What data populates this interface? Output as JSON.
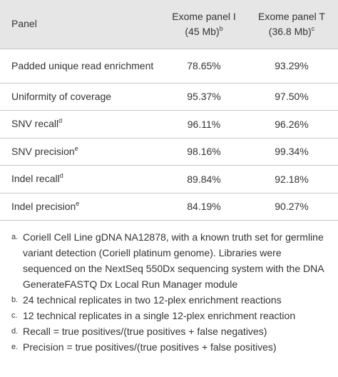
{
  "table": {
    "header": {
      "panel": "Panel",
      "columns": [
        {
          "title": "Exome panel I",
          "size": "(45 Mb)",
          "note": "b"
        },
        {
          "title": "Exome panel T",
          "size": "(36.8 Mb)",
          "note": "c"
        }
      ]
    },
    "rows": [
      {
        "label": "Padded unique read enrichment",
        "values": [
          "78.65%",
          "93.29%"
        ]
      },
      {
        "label": "Uniformity of coverage",
        "values": [
          "95.37%",
          "97.50%"
        ]
      },
      {
        "label": "SNV recall",
        "note": "d",
        "values": [
          "96.11%",
          "96.26%"
        ]
      },
      {
        "label": "SNV precision",
        "note": "e",
        "values": [
          "98.16%",
          "99.34%"
        ]
      },
      {
        "label": "Indel recall",
        "note": "d",
        "values": [
          "89.84%",
          "92.18%"
        ]
      },
      {
        "label": "Indel precision",
        "note": "e",
        "values": [
          "84.19%",
          "90.27%"
        ]
      }
    ]
  },
  "footnotes": [
    {
      "marker": "a.",
      "text": "Coriell Cell Line gDNA NA12878, with a known truth set for germline variant detection (Coriell platinum genome). Libraries were sequenced on the NextSeq 550Dx sequencing system with the DNA GenerateFASTQ Dx Local Run Manager module"
    },
    {
      "marker": "b.",
      "text": "24 technical replicates in two 12-plex enrichment reactions"
    },
    {
      "marker": "c.",
      "text": "12 technical replicates in a single 12-plex enrichment reaction"
    },
    {
      "marker": "d.",
      "text": "Recall = true positives/(true positives + false negatives)"
    },
    {
      "marker": "e.",
      "text": "Precision = true positives/(true positives + false positives)"
    }
  ]
}
